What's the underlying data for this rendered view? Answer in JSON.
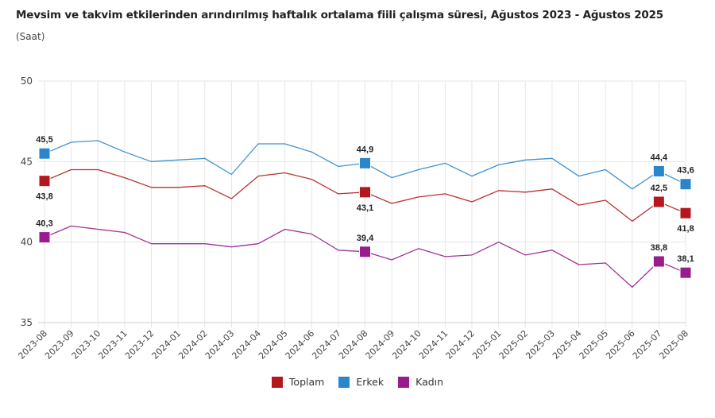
{
  "header": {
    "title": "Mevsim ve takvim etkilerinden arındırılmış haftalık ortalama fiili çalışma süresi, Ağustos 2023 - Ağustos 2025",
    "subtitle": "(Saat)"
  },
  "chart_data": {
    "type": "line",
    "title": "Mevsim ve takvim etkilerinden arındırılmış haftalık ortalama fiili çalışma süresi, Ağustos 2023 - Ağustos 2025",
    "subtitle": "(Saat)",
    "xlabel": "",
    "ylabel": "Saat",
    "ylim": [
      35,
      50
    ],
    "yticks": [
      35,
      40,
      45,
      50
    ],
    "ytick_labels": [
      "35",
      "40",
      "45",
      "50"
    ],
    "grid": true,
    "legend_position": "bottom-center",
    "categories": [
      "2023-08",
      "2023-09",
      "2023-10",
      "2023-11",
      "2023-12",
      "2024-01",
      "2024-02",
      "2024-03",
      "2024-04",
      "2024-05",
      "2024-06",
      "2024-07",
      "2024-08",
      "2024-09",
      "2024-10",
      "2024-11",
      "2024-12",
      "2025-01",
      "2025-02",
      "2025-03",
      "2025-04",
      "2025-05",
      "2025-06",
      "2025-07",
      "2025-08"
    ],
    "highlighted_indices": [
      0,
      12,
      23,
      24
    ],
    "series": [
      {
        "name": "Toplam",
        "color": "#b5181c",
        "values": [
          43.8,
          44.5,
          44.5,
          44.0,
          43.4,
          43.4,
          43.5,
          42.7,
          44.1,
          44.3,
          43.9,
          43.0,
          43.1,
          42.4,
          42.8,
          43.0,
          42.5,
          43.2,
          43.1,
          43.3,
          42.3,
          42.6,
          41.3,
          42.5,
          41.8
        ],
        "data_labels": {
          "0": "43,8",
          "12": "43,1",
          "23": "42,5",
          "24": "41,8"
        },
        "label_position": {
          "0": "below",
          "12": "below",
          "23": "above",
          "24": "below"
        }
      },
      {
        "name": "Erkek",
        "color": "#2a86cb",
        "values": [
          45.5,
          46.2,
          46.3,
          45.6,
          45.0,
          45.1,
          45.2,
          44.2,
          46.1,
          46.1,
          45.6,
          44.7,
          44.9,
          44.0,
          44.5,
          44.9,
          44.1,
          44.8,
          45.1,
          45.2,
          44.1,
          44.5,
          43.3,
          44.4,
          43.6
        ],
        "data_labels": {
          "0": "45,5",
          "12": "44,9",
          "23": "44,4",
          "24": "43,6"
        },
        "label_position": {
          "0": "above",
          "12": "above",
          "23": "above",
          "24": "above"
        }
      },
      {
        "name": "Kadın",
        "color": "#981c8c",
        "values": [
          40.3,
          41.0,
          40.8,
          40.6,
          39.9,
          39.9,
          39.9,
          39.7,
          39.9,
          40.8,
          40.5,
          39.5,
          39.4,
          38.9,
          39.6,
          39.1,
          39.2,
          40.0,
          39.2,
          39.5,
          38.6,
          38.7,
          37.2,
          38.8,
          38.1
        ],
        "data_labels": {
          "0": "40,3",
          "12": "39,4",
          "23": "38,8",
          "24": "38,1"
        },
        "label_position": {
          "0": "above",
          "12": "above",
          "23": "above",
          "24": "above"
        }
      }
    ]
  },
  "legend": {
    "items": [
      {
        "label": "Toplam",
        "color": "#b5181c"
      },
      {
        "label": "Erkek",
        "color": "#2a86cb"
      },
      {
        "label": "Kadın",
        "color": "#981c8c"
      }
    ]
  }
}
